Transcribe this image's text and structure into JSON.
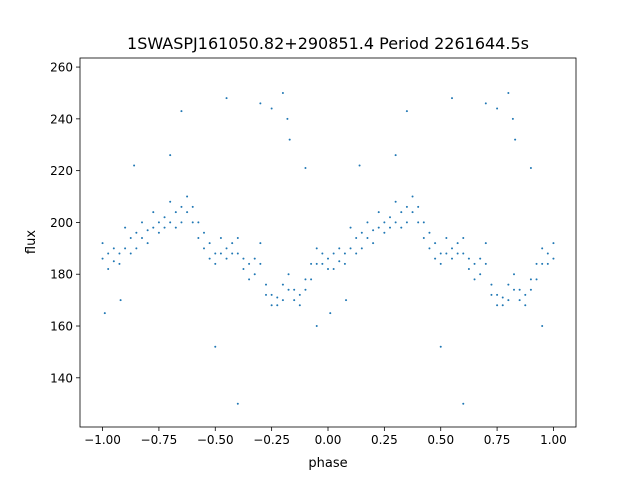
{
  "chart_data": {
    "type": "scatter",
    "title": "1SWASPJ161050.82+290851.4 Period 2261644.5s",
    "xlabel": "phase",
    "ylabel": "flux",
    "xlim": [
      -1.1,
      1.1
    ],
    "ylim": [
      121,
      263.5
    ],
    "xticks": [
      -1.0,
      -0.75,
      -0.5,
      -0.25,
      0.0,
      0.25,
      0.5,
      0.75,
      1.0
    ],
    "xtick_labels": [
      "−1.00",
      "−0.75",
      "−0.50",
      "−0.25",
      "0.00",
      "0.25",
      "0.50",
      "0.75",
      "1.00"
    ],
    "yticks": [
      140,
      160,
      180,
      200,
      220,
      240,
      260
    ],
    "ytick_labels": [
      "140",
      "160",
      "180",
      "200",
      "220",
      "240",
      "260"
    ],
    "grid": false,
    "point_color": "#1f77b4",
    "series": [
      {
        "name": "flux",
        "x": [
          -1.0,
          -1.0,
          -0.975,
          -0.975,
          -0.95,
          -0.95,
          -0.925,
          -0.925,
          -0.9,
          -0.9,
          -0.875,
          -0.875,
          -0.85,
          -0.85,
          -0.825,
          -0.825,
          -0.8,
          -0.8,
          -0.775,
          -0.775,
          -0.75,
          -0.75,
          -0.725,
          -0.725,
          -0.7,
          -0.7,
          -0.675,
          -0.675,
          -0.65,
          -0.65,
          -0.625,
          -0.625,
          -0.6,
          -0.6,
          -0.575,
          -0.575,
          -0.55,
          -0.55,
          -0.525,
          -0.525,
          -0.5,
          -0.5,
          -0.475,
          -0.475,
          -0.45,
          -0.45,
          -0.425,
          -0.425,
          -0.4,
          -0.4,
          -0.375,
          -0.375,
          -0.35,
          -0.35,
          -0.325,
          -0.325,
          -0.3,
          -0.3,
          -0.275,
          -0.275,
          -0.25,
          -0.25,
          -0.225,
          -0.225,
          -0.2,
          -0.2,
          -0.175,
          -0.175,
          -0.15,
          -0.15,
          -0.125,
          -0.125,
          -0.1,
          -0.1,
          -0.075,
          -0.075,
          -0.05,
          -0.05,
          -0.025,
          -0.025,
          0.0,
          0.0,
          -0.2,
          -0.18,
          -0.17,
          -0.1,
          -0.7,
          -0.86,
          -0.3,
          -0.25,
          -0.65,
          -0.5,
          -0.4,
          -0.05,
          -0.99,
          -0.45,
          -0.92,
          0.025,
          0.025,
          0.05,
          0.05,
          0.075,
          0.075,
          0.1,
          0.1,
          0.125,
          0.125,
          0.15,
          0.15,
          0.175,
          0.175,
          0.2,
          0.2,
          0.225,
          0.225,
          0.25,
          0.25,
          0.275,
          0.275,
          0.3,
          0.3,
          0.325,
          0.325,
          0.35,
          0.35,
          0.375,
          0.375,
          0.4,
          0.4,
          0.425,
          0.425,
          0.45,
          0.45,
          0.475,
          0.475,
          0.5,
          0.5,
          0.525,
          0.525,
          0.55,
          0.55,
          0.575,
          0.575,
          0.6,
          0.6,
          0.625,
          0.625,
          0.65,
          0.65,
          0.675,
          0.675,
          0.7,
          0.7,
          0.725,
          0.725,
          0.75,
          0.75,
          0.775,
          0.775,
          0.8,
          0.8,
          0.825,
          0.825,
          0.85,
          0.85,
          0.875,
          0.875,
          0.9,
          0.9,
          0.925,
          0.925,
          0.95,
          0.95,
          0.975,
          0.975,
          1.0,
          1.0,
          0.8,
          0.82,
          0.83,
          0.9,
          0.3,
          0.14,
          0.7,
          0.75,
          0.35,
          0.5,
          0.6,
          0.95,
          0.01,
          0.55,
          0.08
        ],
        "y": [
          192,
          186,
          188,
          182,
          185,
          190,
          184,
          188,
          198,
          190,
          194,
          188,
          196,
          190,
          200,
          194,
          197,
          192,
          204,
          198,
          200,
          196,
          202,
          198,
          208,
          200,
          204,
          198,
          206,
          200,
          210,
          204,
          206,
          200,
          200,
          194,
          196,
          190,
          192,
          186,
          188,
          184,
          194,
          188,
          190,
          186,
          192,
          188,
          194,
          188,
          186,
          182,
          184,
          178,
          186,
          180,
          192,
          184,
          176,
          172,
          172,
          168,
          171,
          168,
          176,
          170,
          180,
          174,
          174,
          170,
          172,
          168,
          178,
          174,
          184,
          178,
          190,
          184,
          188,
          184,
          186,
          182,
          250,
          240,
          232,
          221,
          226,
          222,
          246,
          244,
          243,
          152,
          130,
          160,
          165,
          248,
          170,
          188,
          182,
          185,
          190,
          184,
          188,
          198,
          190,
          194,
          188,
          196,
          190,
          200,
          194,
          197,
          192,
          204,
          198,
          200,
          196,
          202,
          198,
          208,
          200,
          204,
          198,
          206,
          200,
          210,
          204,
          206,
          200,
          200,
          194,
          196,
          190,
          192,
          186,
          188,
          184,
          194,
          188,
          190,
          186,
          192,
          188,
          194,
          188,
          186,
          182,
          184,
          178,
          186,
          180,
          192,
          184,
          176,
          172,
          172,
          168,
          171,
          168,
          176,
          170,
          180,
          174,
          174,
          170,
          172,
          168,
          178,
          174,
          184,
          178,
          190,
          184,
          188,
          184,
          192,
          186,
          250,
          240,
          232,
          221,
          226,
          222,
          246,
          244,
          243,
          152,
          130,
          160,
          165,
          248,
          170
        ]
      }
    ]
  }
}
